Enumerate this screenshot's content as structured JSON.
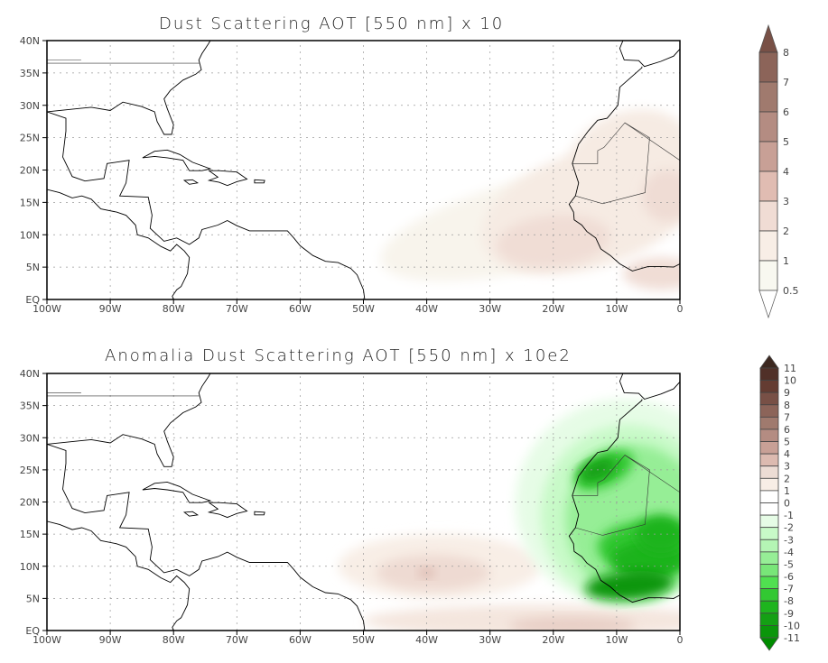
{
  "panels": [
    {
      "title": "Dust Scattering AOT [550 nm] x 10",
      "lat_labels": [
        "40N",
        "35N",
        "30N",
        "25N",
        "20N",
        "15N",
        "10N",
        "5N",
        "EQ"
      ],
      "lon_labels": [
        "100W",
        "90W",
        "80W",
        "70W",
        "60W",
        "50W",
        "40W",
        "30W",
        "20W",
        "10W",
        "0"
      ],
      "legend": {
        "levels": [
          "8",
          "7",
          "6",
          "5",
          "4",
          "3",
          "2",
          "1",
          "0.5"
        ],
        "colors": [
          "#785046",
          "#8c6459",
          "#a07a6e",
          "#b48c82",
          "#c8a096",
          "#e0bcb2",
          "#f0dcd4",
          "#f8eee6",
          "#f8f8f0",
          "#ffffff"
        ]
      }
    },
    {
      "title": "Anomalia Dust Scattering AOT [550 nm] x 10e2",
      "lat_labels": [
        "40N",
        "35N",
        "30N",
        "25N",
        "20N",
        "15N",
        "10N",
        "5N",
        "EQ"
      ],
      "lon_labels": [
        "100W",
        "90W",
        "80W",
        "70W",
        "60W",
        "50W",
        "40W",
        "30W",
        "20W",
        "10W",
        "0"
      ],
      "legend": {
        "levels": [
          "11",
          "10",
          "9",
          "8",
          "7",
          "6",
          "5",
          "4",
          "3",
          "2",
          "1",
          "0",
          "-1",
          "-2",
          "-3",
          "-4",
          "-5",
          "-6",
          "-7",
          "-8",
          "-9",
          "-10",
          "-11"
        ],
        "colors": [
          "#3c2820",
          "#503028",
          "#643c32",
          "#785046",
          "#8c6459",
          "#a07a6e",
          "#b48c82",
          "#c8a096",
          "#dcbab0",
          "#ecdcd4",
          "#f8eee6",
          "#ffffff",
          "#ffffff",
          "#e6fce6",
          "#c8fac8",
          "#b4f5b4",
          "#96ee96",
          "#78e678",
          "#50e050",
          "#32c832",
          "#1eb41e",
          "#14a014",
          "#0a960a",
          "#008c00"
        ]
      }
    }
  ]
}
